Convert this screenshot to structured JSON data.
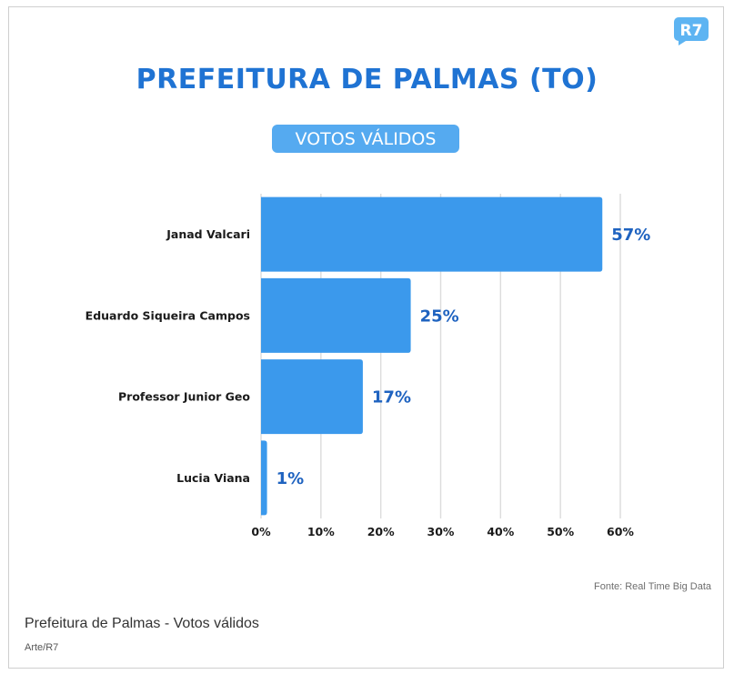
{
  "header": {
    "title": "PREFEITURA DE PALMAS (TO)",
    "subtitle": "VOTOS VÁLIDOS",
    "logo_text": "R7",
    "logo_icon": "r7-logo-icon"
  },
  "colors": {
    "bar": "#3b99ec",
    "title": "#1f73d3",
    "value_label": "#1f63c0",
    "subtitle_bg": "#55aaf0",
    "grid": "#dcdcdc"
  },
  "chart_data": {
    "type": "bar",
    "orientation": "horizontal",
    "title": "PREFEITURA DE PALMAS (TO)",
    "subtitle": "VOTOS VÁLIDOS",
    "categories": [
      "Janad Valcari",
      "Eduardo Siqueira Campos",
      "Professor Junior Geo",
      "Lucia Viana"
    ],
    "values": [
      57,
      25,
      17,
      1
    ],
    "value_labels": [
      "57%",
      "25%",
      "17%",
      "1%"
    ],
    "xlim": [
      0,
      60
    ],
    "xticks": [
      0,
      10,
      20,
      30,
      40,
      50,
      60
    ],
    "xtick_labels": [
      "0%",
      "10%",
      "20%",
      "30%",
      "40%",
      "50%",
      "60%"
    ],
    "xlabel": "",
    "ylabel": "",
    "grid": true
  },
  "footer": {
    "source": "Fonte: Real Time Big Data",
    "caption": "Prefeitura de Palmas - Votos válidos",
    "credit": "Arte/R7"
  }
}
